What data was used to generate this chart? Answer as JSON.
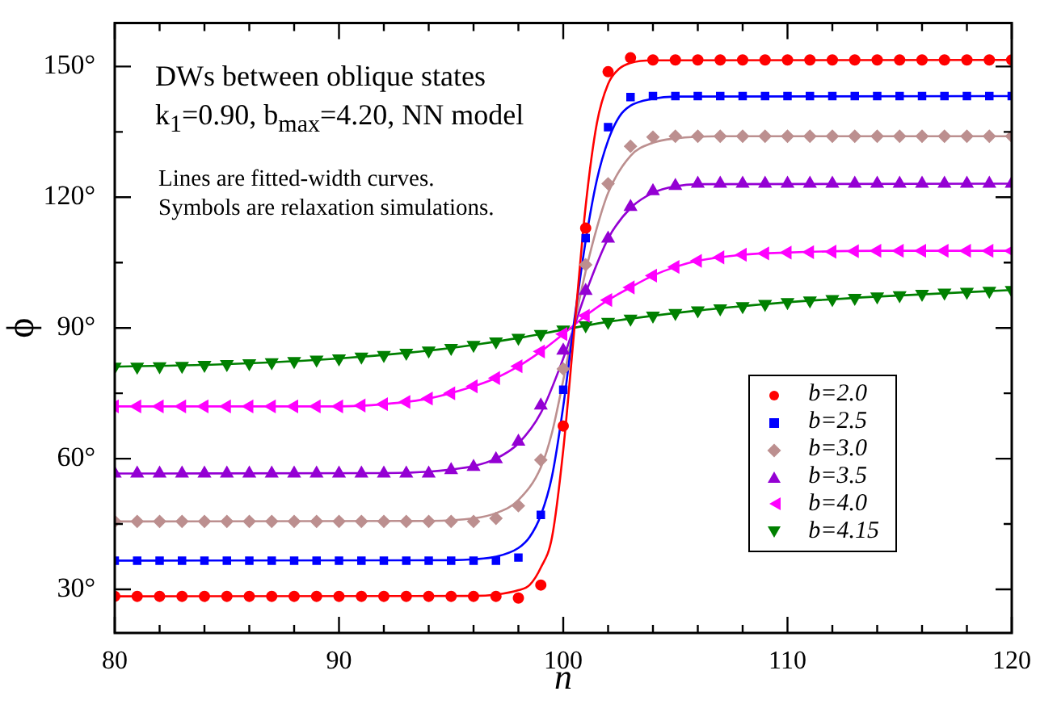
{
  "chart_data": {
    "type": "scatter",
    "xlabel": "n",
    "ylabel": "ϕ",
    "annotations": [
      "DWs between oblique states",
      "k$_{1}$=0.90, b$_{max}$=4.20, NN model",
      "Lines are fitted-width curves.",
      "Symbols are relaxation simulations."
    ],
    "xlim": [
      80,
      120
    ],
    "xticks": [
      80,
      {
        "value": 82,
        "label": null
      },
      {
        "value": 84,
        "label": null
      },
      {
        "value": 86,
        "label": null
      },
      {
        "value": 88,
        "label": null
      },
      90,
      {
        "value": 92,
        "label": null
      },
      {
        "value": 94,
        "label": null
      },
      {
        "value": 96,
        "label": null
      },
      {
        "value": 98,
        "label": null
      },
      100,
      {
        "value": 102,
        "label": null
      },
      {
        "value": 104,
        "label": null
      },
      {
        "value": 106,
        "label": null
      },
      {
        "value": 108,
        "label": null
      },
      110,
      {
        "value": 112,
        "label": null
      },
      {
        "value": 114,
        "label": null
      },
      {
        "value": 116,
        "label": null
      },
      {
        "value": 118,
        "label": null
      },
      120
    ],
    "ylim": [
      20,
      160
    ],
    "yticks": [
      {
        "value": 30,
        "label": "30°"
      },
      {
        "value": 45,
        "label": null
      },
      {
        "value": 60,
        "label": "60°"
      },
      {
        "value": 75,
        "label": null
      },
      {
        "value": 90,
        "label": "90°"
      },
      {
        "value": 105,
        "label": null
      },
      {
        "value": 120,
        "label": "120°"
      },
      {
        "value": 135,
        "label": null
      },
      {
        "value": 150,
        "label": "150°"
      }
    ],
    "grid": false,
    "legend": "bottom right",
    "line_style": "solid",
    "series": [
      {
        "type": "line",
        "color": "#ff0000",
        "marker": "none",
        "x": [
          80,
          96,
          97,
          98,
          98.5,
          99,
          99.5,
          100,
          100.5,
          101,
          101.5,
          102,
          102.5,
          103,
          104,
          120
        ],
        "values": [
          28.4,
          28.5,
          28.8,
          29.8,
          31,
          35,
          42,
          62,
          90,
          118,
          137,
          146,
          149.5,
          150.8,
          151.4,
          151.5
        ]
      },
      {
        "type": "line",
        "color": "#0000ff",
        "marker": "none",
        "x": [
          80,
          95,
          96,
          97,
          98,
          98.5,
          99,
          99.5,
          100,
          100.5,
          101,
          101.5,
          102,
          102.5,
          103,
          104,
          105,
          120
        ],
        "values": [
          36.6,
          36.7,
          36.9,
          37.5,
          39.5,
          42,
          47,
          56,
          72,
          92,
          110,
          124,
          133,
          138.5,
          141,
          142.6,
          143.1,
          143.2
        ]
      },
      {
        "type": "line",
        "color": "#bc8f8f",
        "marker": "none",
        "x": [
          80,
          94,
          96,
          97,
          98,
          99,
          99.5,
          100,
          100.5,
          101,
          101.5,
          102,
          103,
          104,
          105,
          107,
          120
        ],
        "values": [
          45.6,
          45.7,
          46.3,
          47.5,
          50.5,
          58,
          66,
          78,
          91,
          103,
          113,
          121,
          129.5,
          132.5,
          133.5,
          134,
          134
        ]
      },
      {
        "type": "line",
        "color": "#9400d3",
        "marker": "none",
        "x": [
          80,
          92,
          94,
          95,
          96,
          97,
          98,
          99,
          100,
          100.5,
          101,
          102,
          103,
          104,
          105,
          106,
          120
        ],
        "values": [
          56.6,
          56.7,
          57,
          57.5,
          58.3,
          60,
          63.5,
          70.5,
          83,
          90.5,
          98,
          110.5,
          117.5,
          121,
          122.5,
          123,
          123.1
        ]
      },
      {
        "type": "line",
        "color": "#ff00ff",
        "marker": "none",
        "x": [
          80,
          88,
          90,
          92,
          94,
          96,
          97,
          98,
          99,
          100,
          101,
          102,
          103,
          104,
          105,
          106,
          108,
          110,
          114,
          120
        ],
        "values": [
          72.0,
          72.0,
          72.0,
          72.5,
          73.8,
          76.6,
          78.5,
          81.2,
          84.6,
          88.6,
          92.8,
          96.4,
          99.3,
          102.0,
          104.0,
          105.4,
          106.8,
          107.3,
          107.7,
          107.7
        ]
      },
      {
        "type": "line",
        "color": "#008000",
        "marker": "none",
        "x": [
          80,
          85,
          90,
          94,
          96,
          98,
          100,
          102,
          104,
          106,
          108,
          110,
          114,
          120
        ],
        "values": [
          81.1,
          81.7,
          83.0,
          84.8,
          86.1,
          87.7,
          89.6,
          91.4,
          92.8,
          94.0,
          95.0,
          95.9,
          97.2,
          98.7
        ]
      },
      {
        "name": "b=2.0",
        "color": "#ff0000",
        "marker": "circle",
        "x": [
          80,
          81,
          82,
          83,
          84,
          85,
          86,
          87,
          88,
          89,
          90,
          91,
          92,
          93,
          94,
          95,
          96,
          97,
          98,
          99,
          100,
          101,
          102,
          103,
          104,
          105,
          106,
          107,
          108,
          109,
          110,
          111,
          112,
          113,
          114,
          115,
          116,
          117,
          118,
          119,
          120
        ],
        "values": [
          28.4,
          28.4,
          28.4,
          28.4,
          28.4,
          28.4,
          28.4,
          28.4,
          28.4,
          28.4,
          28.4,
          28.4,
          28.4,
          28.4,
          28.4,
          28.4,
          28.4,
          28.4,
          28.0,
          31.0,
          67.5,
          112.9,
          148.8,
          152.0,
          151.5,
          151.5,
          151.5,
          151.5,
          151.5,
          151.5,
          151.5,
          151.5,
          151.5,
          151.5,
          151.5,
          151.5,
          151.5,
          151.5,
          151.5,
          151.5,
          151.5
        ]
      },
      {
        "name": "b=2.5",
        "color": "#0000ff",
        "marker": "square",
        "x": [
          80,
          81,
          82,
          83,
          84,
          85,
          86,
          87,
          88,
          89,
          90,
          91,
          92,
          93,
          94,
          95,
          96,
          97,
          98,
          99,
          100,
          101,
          102,
          103,
          104,
          105,
          106,
          107,
          108,
          109,
          110,
          111,
          112,
          113,
          114,
          115,
          116,
          117,
          118,
          119,
          120
        ],
        "values": [
          36.6,
          36.6,
          36.6,
          36.6,
          36.6,
          36.6,
          36.6,
          36.6,
          36.6,
          36.6,
          36.6,
          36.6,
          36.6,
          36.6,
          36.6,
          36.6,
          36.6,
          36.6,
          37.3,
          47.1,
          75.8,
          110.6,
          136.1,
          143.0,
          143.2,
          143.2,
          143.2,
          143.2,
          143.2,
          143.2,
          143.2,
          143.2,
          143.2,
          143.2,
          143.2,
          143.2,
          143.2,
          143.2,
          143.2,
          143.2,
          143.2
        ]
      },
      {
        "name": "b=3.0",
        "color": "#bc8f8f",
        "marker": "diamond",
        "x": [
          80,
          81,
          82,
          83,
          84,
          85,
          86,
          87,
          88,
          89,
          90,
          91,
          92,
          93,
          94,
          95,
          96,
          97,
          98,
          99,
          100,
          101,
          102,
          103,
          104,
          105,
          106,
          107,
          108,
          109,
          110,
          111,
          112,
          113,
          114,
          115,
          116,
          117,
          118,
          119,
          120
        ],
        "values": [
          45.6,
          45.6,
          45.6,
          45.6,
          45.6,
          45.6,
          45.6,
          45.6,
          45.6,
          45.6,
          45.6,
          45.6,
          45.6,
          45.6,
          45.6,
          45.6,
          45.6,
          46.3,
          49.2,
          59.7,
          80.6,
          104.5,
          123.1,
          131.7,
          133.8,
          134.0,
          134.0,
          134.0,
          134.0,
          134.0,
          134.0,
          134.0,
          134.0,
          134.0,
          134.0,
          134.0,
          134.0,
          134.0,
          134.0,
          134.0,
          134.0
        ]
      },
      {
        "name": "b=3.5",
        "color": "#9400d3",
        "marker": "triangle",
        "x": [
          80,
          81,
          82,
          83,
          84,
          85,
          86,
          87,
          88,
          89,
          90,
          91,
          92,
          93,
          94,
          95,
          96,
          97,
          98,
          99,
          100,
          101,
          102,
          103,
          104,
          105,
          106,
          107,
          108,
          109,
          110,
          111,
          112,
          113,
          114,
          115,
          116,
          117,
          118,
          119,
          120
        ],
        "values": [
          56.6,
          56.6,
          56.6,
          56.6,
          56.6,
          56.6,
          56.6,
          56.6,
          56.6,
          56.6,
          56.6,
          56.6,
          56.6,
          56.6,
          56.6,
          57.4,
          58.1,
          59.9,
          63.9,
          72.2,
          84.8,
          98.5,
          110.5,
          117.8,
          121.4,
          122.6,
          123.1,
          123.1,
          123.1,
          123.1,
          123.1,
          123.1,
          123.1,
          123.1,
          123.1,
          123.1,
          123.1,
          123.1,
          123.1,
          123.1,
          123.1
        ]
      },
      {
        "name": "b=4.0",
        "color": "#ff00ff",
        "marker": "triangle-left",
        "x": [
          80,
          81,
          82,
          83,
          84,
          85,
          86,
          87,
          88,
          89,
          90,
          91,
          92,
          93,
          94,
          95,
          96,
          97,
          98,
          99,
          100,
          101,
          102,
          103,
          104,
          105,
          106,
          107,
          108,
          109,
          110,
          111,
          112,
          113,
          114,
          115,
          116,
          117,
          118,
          119,
          120
        ],
        "values": [
          72.0,
          72.0,
          72.0,
          72.0,
          72.0,
          72.0,
          72.0,
          72.0,
          72.0,
          72.0,
          72.0,
          72.2,
          72.5,
          73.0,
          73.8,
          75.0,
          76.6,
          78.5,
          81.2,
          84.6,
          88.6,
          92.8,
          96.4,
          99.3,
          102.0,
          104.0,
          105.4,
          106.2,
          106.8,
          107.1,
          107.3,
          107.4,
          107.5,
          107.6,
          107.7,
          107.7,
          107.7,
          107.7,
          107.7,
          107.7,
          107.7
        ]
      },
      {
        "name": "b=4.15",
        "color": "#008000",
        "marker": "triangle-down",
        "x": [
          80,
          81,
          82,
          83,
          84,
          85,
          86,
          87,
          88,
          89,
          90,
          91,
          92,
          93,
          94,
          95,
          96,
          97,
          98,
          99,
          100,
          101,
          102,
          103,
          104,
          105,
          106,
          107,
          108,
          109,
          110,
          111,
          112,
          113,
          114,
          115,
          116,
          117,
          118,
          119,
          120
        ],
        "values": [
          81.1,
          81.1,
          81.2,
          81.3,
          81.5,
          81.7,
          81.9,
          82.1,
          82.4,
          82.7,
          83.0,
          83.4,
          83.8,
          84.3,
          84.8,
          85.4,
          86.1,
          86.9,
          87.7,
          88.6,
          89.6,
          90.6,
          91.4,
          92.1,
          92.8,
          93.4,
          94.0,
          94.5,
          95.0,
          95.5,
          95.9,
          96.3,
          96.6,
          96.9,
          97.2,
          97.5,
          97.8,
          98.1,
          98.3,
          98.5,
          98.7
        ]
      }
    ]
  }
}
